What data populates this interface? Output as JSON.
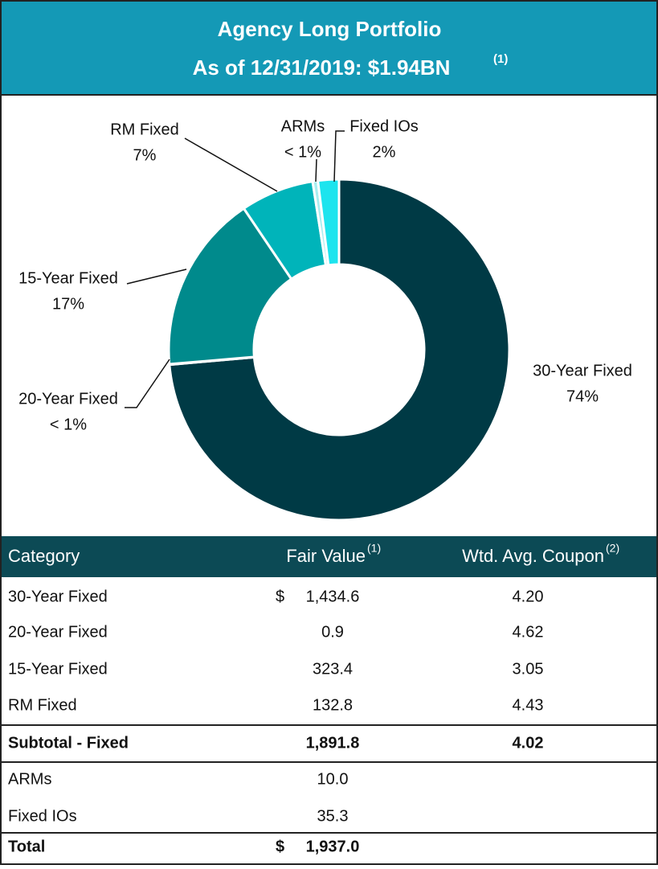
{
  "chart_data": {
    "type": "donut",
    "title": "Agency Long Portfolio",
    "subtitle": "As of 12/31/2019: $1.94BN",
    "subtitle_note": "(1)",
    "categories": [
      "30-Year Fixed",
      "20-Year Fixed",
      "15-Year Fixed",
      "RM Fixed",
      "ARMs",
      "Fixed IOs"
    ],
    "values": [
      74,
      0.05,
      17,
      7,
      0.5,
      2
    ],
    "value_labels": [
      "74%",
      "< 1%",
      "17%",
      "7%",
      "< 1%",
      "2%"
    ],
    "colors": [
      "#003a45",
      "#0b5f69",
      "#008a8c",
      "#00b4ba",
      "#a8eef0",
      "#1de4ee"
    ]
  },
  "table": {
    "headers": [
      "Category",
      "Fair Value",
      "Wtd. Avg. Coupon"
    ],
    "header_notes": [
      "(1)",
      "(2)"
    ],
    "rows": [
      {
        "category": "30-Year Fixed",
        "currency": "$",
        "fair_value": "1,434.6",
        "coupon": "4.20"
      },
      {
        "category": "20-Year Fixed",
        "fair_value": "0.9",
        "coupon": "4.62"
      },
      {
        "category": "15-Year Fixed",
        "fair_value": "323.4",
        "coupon": "3.05"
      },
      {
        "category": "RM Fixed",
        "fair_value": "132.8",
        "coupon": "4.43"
      },
      {
        "category": "Subtotal - Fixed",
        "fair_value": "1,891.8",
        "coupon": "4.02",
        "bold": true
      },
      {
        "category": "ARMs",
        "fair_value": "10.0"
      },
      {
        "category": "Fixed IOs",
        "fair_value": "35.3"
      },
      {
        "category": "Total",
        "currency": "$",
        "fair_value": "1,937.0",
        "bold": true
      }
    ]
  }
}
